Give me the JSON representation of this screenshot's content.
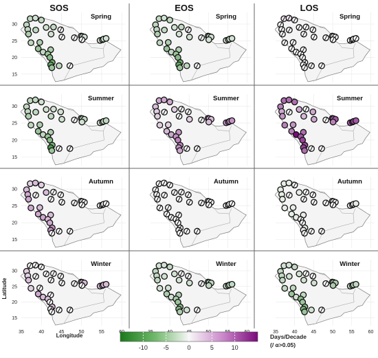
{
  "chart_data": {
    "type": "scatter",
    "columns": [
      "SOS",
      "EOS",
      "LOS"
    ],
    "rows": [
      "Spring",
      "Summer",
      "Autumn",
      "Winter"
    ],
    "xticks": [
      "35",
      "40",
      "45",
      "50",
      "55",
      "60"
    ],
    "yticks": [
      "30",
      "25",
      "20",
      "15"
    ],
    "xlim": [
      35,
      61
    ],
    "ylim": [
      12.5,
      33.5
    ],
    "xlabel": "Longitude",
    "ylabel": "Latitude",
    "colorbar": {
      "ticks": [
        "-10",
        "-5",
        "0",
        "5",
        "10"
      ],
      "range": [
        -15,
        15
      ],
      "title_line1": "Days/Decade",
      "title_line2": "(/ α>0.05)",
      "colors": {
        "negative": "#1b7a1b",
        "zero": "#f7f7f7",
        "positive": "#7b0a7b"
      }
    },
    "stations": [
      [
        37.2,
        31.6
      ],
      [
        38.5,
        31.8
      ],
      [
        40.0,
        31.2
      ],
      [
        36.3,
        29.8
      ],
      [
        36.6,
        28.4
      ],
      [
        38.6,
        28.2
      ],
      [
        41.2,
        29.0
      ],
      [
        43.0,
        29.1
      ],
      [
        44.8,
        28.3
      ],
      [
        36.8,
        27.0
      ],
      [
        42.4,
        27.0
      ],
      [
        45.1,
        26.1
      ],
      [
        48.2,
        25.9
      ],
      [
        49.9,
        26.4
      ],
      [
        50.2,
        26.3
      ],
      [
        50.7,
        26.1
      ],
      [
        50.1,
        25.3
      ],
      [
        37.4,
        24.4
      ],
      [
        39.6,
        24.5
      ],
      [
        54.6,
        25.1
      ],
      [
        55.2,
        25.3
      ],
      [
        55.5,
        25.5
      ],
      [
        56.1,
        25.7
      ],
      [
        39.2,
        22.6
      ],
      [
        40.4,
        21.6
      ],
      [
        42.3,
        22.3
      ],
      [
        41.6,
        21.0
      ],
      [
        42.1,
        20.0
      ],
      [
        42.7,
        18.5
      ],
      [
        42.3,
        17.8
      ],
      [
        42.6,
        16.9
      ],
      [
        44.4,
        17.5
      ],
      [
        47.1,
        17.5
      ]
    ],
    "series": [
      {
        "column": "SOS",
        "season": "Spring",
        "values": [
          -3,
          -2,
          -3,
          -3,
          -3,
          -3,
          -2,
          -3,
          0,
          -4,
          -2,
          0,
          0,
          -3,
          -3,
          -2,
          0,
          -3,
          -4,
          -2,
          -2,
          -2,
          -2,
          -5,
          -3,
          -4,
          -5,
          -6,
          -7,
          -8,
          -5,
          -3,
          0
        ],
        "significant": [
          1,
          1,
          1,
          1,
          1,
          1,
          1,
          1,
          0,
          1,
          1,
          0,
          0,
          1,
          1,
          1,
          0,
          1,
          1,
          1,
          1,
          1,
          1,
          1,
          1,
          1,
          1,
          1,
          1,
          1,
          1,
          1,
          0
        ]
      },
      {
        "column": "EOS",
        "season": "Spring",
        "values": [
          -3,
          -2,
          -3,
          -3,
          -3,
          -3,
          -2,
          -3,
          0,
          -4,
          -2,
          -2,
          0,
          -3,
          -3,
          -2,
          -2,
          -3,
          -4,
          -2,
          -2,
          -2,
          -2,
          -5,
          -3,
          -4,
          -5,
          -6,
          -7,
          -8,
          -5,
          -3,
          0
        ],
        "significant": [
          1,
          1,
          1,
          1,
          1,
          1,
          1,
          1,
          0,
          1,
          1,
          1,
          0,
          1,
          1,
          1,
          1,
          1,
          1,
          1,
          1,
          1,
          1,
          1,
          1,
          1,
          1,
          1,
          1,
          1,
          1,
          1,
          0
        ]
      },
      {
        "column": "LOS",
        "season": "Spring",
        "values": [
          1,
          1,
          0,
          0,
          0,
          0,
          0,
          0,
          0,
          0,
          0,
          0,
          0,
          0,
          0,
          0,
          0,
          0,
          0,
          0,
          0,
          0,
          0,
          0,
          0,
          0,
          0,
          0,
          0,
          0,
          0,
          0,
          0
        ],
        "significant": [
          0,
          0,
          0,
          0,
          0,
          0,
          0,
          0,
          0,
          0,
          0,
          0,
          0,
          0,
          0,
          0,
          0,
          0,
          0,
          0,
          0,
          0,
          0,
          0,
          0,
          0,
          0,
          0,
          0,
          0,
          0,
          0,
          0
        ]
      },
      {
        "column": "SOS",
        "season": "Summer",
        "values": [
          -3,
          -3,
          -2,
          -3,
          -3,
          -3,
          -2,
          -2,
          -2,
          -4,
          -3,
          -2,
          0,
          -3,
          -3,
          -3,
          -2,
          -3,
          -4,
          -2,
          -3,
          -3,
          -3,
          -5,
          -3,
          -4,
          -5,
          -6,
          -7,
          -9,
          -5,
          0,
          0
        ],
        "significant": [
          1,
          1,
          1,
          1,
          1,
          1,
          1,
          1,
          1,
          1,
          1,
          1,
          0,
          1,
          1,
          1,
          1,
          1,
          1,
          1,
          1,
          1,
          1,
          1,
          1,
          1,
          1,
          1,
          1,
          1,
          1,
          0,
          0
        ]
      },
      {
        "column": "EOS",
        "season": "Summer",
        "values": [
          4,
          4,
          4,
          3,
          2,
          0,
          2,
          0,
          0,
          2,
          0,
          2,
          0,
          3,
          3,
          3,
          3,
          2,
          2,
          5,
          6,
          6,
          5,
          3,
          4,
          5,
          5,
          6,
          6,
          5,
          4,
          0,
          0
        ],
        "significant": [
          1,
          1,
          1,
          1,
          1,
          0,
          1,
          0,
          0,
          1,
          0,
          1,
          0,
          1,
          1,
          1,
          1,
          1,
          1,
          1,
          1,
          1,
          1,
          1,
          1,
          1,
          1,
          1,
          1,
          1,
          1,
          0,
          0
        ]
      },
      {
        "column": "LOS",
        "season": "Summer",
        "values": [
          7,
          7,
          7,
          6,
          4,
          0,
          4,
          0,
          4,
          5,
          3,
          4,
          0,
          8,
          7,
          8,
          6,
          6,
          5,
          8,
          9,
          9,
          8,
          6,
          14,
          7,
          8,
          9,
          9,
          9,
          7,
          0,
          0
        ],
        "significant": [
          1,
          1,
          1,
          1,
          1,
          0,
          1,
          0,
          1,
          1,
          1,
          1,
          0,
          1,
          1,
          1,
          1,
          1,
          1,
          1,
          1,
          1,
          1,
          1,
          1,
          1,
          1,
          1,
          1,
          1,
          1,
          0,
          0
        ]
      },
      {
        "column": "SOS",
        "season": "Autumn",
        "values": [
          2,
          3,
          2,
          3,
          4,
          0,
          3,
          0,
          0,
          4,
          0,
          0,
          0,
          2,
          0,
          0,
          0,
          4,
          3,
          0,
          0,
          0,
          0,
          4,
          4,
          3,
          3,
          4,
          5,
          5,
          0,
          0,
          0
        ],
        "significant": [
          1,
          1,
          1,
          1,
          1,
          0,
          1,
          0,
          0,
          1,
          0,
          0,
          0,
          1,
          0,
          0,
          0,
          1,
          1,
          0,
          0,
          0,
          0,
          1,
          1,
          1,
          1,
          1,
          1,
          1,
          0,
          0,
          0
        ]
      },
      {
        "column": "EOS",
        "season": "Autumn",
        "values": [
          0,
          0,
          0,
          0,
          0,
          0,
          0,
          0,
          0,
          0,
          0,
          0,
          0,
          0,
          0,
          0,
          0,
          0,
          0,
          0,
          0,
          0,
          0,
          0,
          0,
          0,
          0,
          0,
          0,
          0,
          0,
          0,
          0
        ],
        "significant": [
          0,
          0,
          0,
          0,
          0,
          0,
          0,
          0,
          0,
          0,
          0,
          0,
          0,
          0,
          0,
          0,
          0,
          0,
          0,
          0,
          0,
          0,
          0,
          0,
          0,
          0,
          0,
          0,
          0,
          0,
          0,
          0,
          0
        ]
      },
      {
        "column": "LOS",
        "season": "Autumn",
        "values": [
          -1,
          -1,
          0,
          -1,
          -1,
          0,
          -1,
          0,
          0,
          -1,
          0,
          0,
          0,
          -1,
          0,
          0,
          0,
          -1,
          -1,
          -1,
          -1,
          0,
          -1,
          -1,
          -1,
          -1,
          0,
          0,
          -1,
          -1,
          0,
          0,
          0
        ],
        "significant": [
          1,
          1,
          0,
          1,
          1,
          0,
          1,
          0,
          0,
          1,
          0,
          0,
          0,
          1,
          0,
          0,
          0,
          1,
          1,
          1,
          1,
          0,
          1,
          1,
          1,
          1,
          0,
          0,
          1,
          1,
          0,
          0,
          0
        ]
      },
      {
        "column": "SOS",
        "season": "Winter",
        "values": [
          0,
          0,
          0,
          2,
          2,
          0,
          0,
          0,
          0,
          3,
          0,
          0,
          0,
          3,
          3,
          3,
          0,
          2,
          0,
          3,
          3,
          3,
          3,
          4,
          3,
          0,
          3,
          0,
          3,
          0,
          0,
          0,
          0
        ],
        "significant": [
          0,
          0,
          0,
          1,
          1,
          0,
          0,
          0,
          0,
          1,
          0,
          0,
          0,
          1,
          1,
          1,
          0,
          1,
          0,
          1,
          1,
          1,
          1,
          1,
          1,
          0,
          1,
          0,
          1,
          0,
          0,
          0,
          0
        ]
      },
      {
        "column": "EOS",
        "season": "Winter",
        "values": [
          -2,
          -2,
          -3,
          -3,
          -3,
          -2,
          -2,
          0,
          0,
          -3,
          -2,
          -2,
          0,
          -3,
          -3,
          -3,
          -3,
          -2,
          -2,
          -3,
          -3,
          -3,
          -3,
          -4,
          -2,
          -4,
          -4,
          -5,
          -6,
          -6,
          -4,
          -2,
          0
        ],
        "significant": [
          1,
          1,
          1,
          1,
          1,
          1,
          1,
          0,
          0,
          1,
          1,
          1,
          0,
          1,
          1,
          1,
          1,
          1,
          1,
          1,
          1,
          1,
          1,
          1,
          1,
          1,
          1,
          1,
          1,
          1,
          1,
          1,
          0
        ]
      },
      {
        "column": "LOS",
        "season": "Winter",
        "values": [
          -2,
          -2,
          -3,
          -3,
          -3,
          -2,
          -2,
          0,
          0,
          -3,
          -2,
          -2,
          0,
          -4,
          -4,
          -4,
          -4,
          -3,
          -3,
          -3,
          -3,
          -3,
          -3,
          -5,
          -2,
          -3,
          -6,
          -5,
          -6,
          -7,
          -5,
          -2,
          0
        ],
        "significant": [
          1,
          1,
          1,
          1,
          1,
          1,
          1,
          0,
          0,
          1,
          1,
          1,
          0,
          1,
          1,
          1,
          1,
          1,
          1,
          1,
          1,
          1,
          1,
          1,
          1,
          1,
          1,
          1,
          1,
          1,
          1,
          1,
          0
        ]
      }
    ]
  }
}
